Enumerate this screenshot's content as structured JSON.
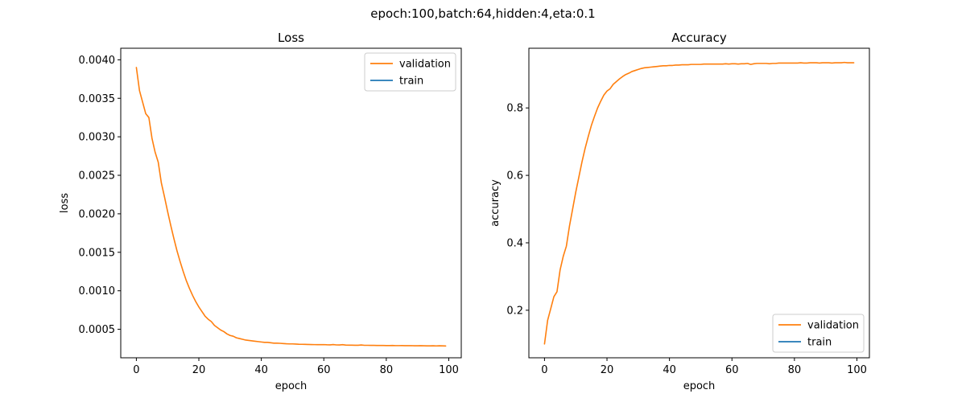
{
  "suptitle": "epoch:100,batch:64,hidden:4,eta:0.1",
  "chart_data": [
    {
      "type": "line",
      "title": "Loss",
      "xlabel": "epoch",
      "ylabel": "loss",
      "xlim": [
        -5,
        104
      ],
      "ylim": [
        0.00013,
        0.00415
      ],
      "xticks": [
        0,
        20,
        40,
        60,
        80,
        100
      ],
      "xtick_labels": [
        "0",
        "20",
        "40",
        "60",
        "80",
        "100"
      ],
      "yticks": [
        0.0005,
        0.001,
        0.0015,
        0.002,
        0.0025,
        0.003,
        0.0035,
        0.004
      ],
      "ytick_labels": [
        "0.0005",
        "0.0010",
        "0.0015",
        "0.0020",
        "0.0025",
        "0.0030",
        "0.0035",
        "0.0040"
      ],
      "legend_position": "top-right",
      "legend": [
        {
          "name": "validation",
          "color": "#ff7f0e"
        },
        {
          "name": "train",
          "color": "#1f77b4"
        }
      ],
      "series": [
        {
          "name": "validation",
          "color": "#ff7f0e",
          "x_start": 0,
          "values": [
            0.0039,
            0.0036,
            0.00345,
            0.0033,
            0.00325,
            0.00298,
            0.0028,
            0.00267,
            0.0024,
            0.00222,
            0.00203,
            0.00185,
            0.00168,
            0.00152,
            0.00138,
            0.00125,
            0.00113,
            0.00103,
            0.00094,
            0.00086,
            0.00079,
            0.00073,
            0.00067,
            0.00063,
            0.0006,
            0.00055,
            0.00052,
            0.00049,
            0.00047,
            0.00044,
            0.00042,
            0.00041,
            0.00039,
            0.00038,
            0.00037,
            0.00036,
            0.000355,
            0.00035,
            0.000345,
            0.00034,
            0.000335,
            0.00033,
            0.00033,
            0.000325,
            0.00032,
            0.00032,
            0.000318,
            0.000315,
            0.000312,
            0.00031,
            0.00031,
            0.000308,
            0.000306,
            0.000305,
            0.000304,
            0.000303,
            0.000302,
            0.000301,
            0.0003,
            0.0003,
            0.000301,
            0.000299,
            0.000298,
            0.000302,
            0.000297,
            0.000296,
            0.0003,
            0.000295,
            0.000294,
            0.000294,
            0.000293,
            0.000293,
            0.000296,
            0.000292,
            0.000292,
            0.000291,
            0.000291,
            0.00029,
            0.00029,
            0.00029,
            0.000289,
            0.000289,
            0.00029,
            0.000288,
            0.000288,
            0.000289,
            0.000287,
            0.000287,
            0.000288,
            0.000286,
            0.000286,
            0.000287,
            0.000286,
            0.000285,
            0.000285,
            0.000286,
            0.000284,
            0.000286,
            0.000285,
            0.000283
          ]
        },
        {
          "name": "train",
          "color": "#1f77b4",
          "x_start": 0,
          "values": []
        }
      ]
    },
    {
      "type": "line",
      "title": "Accuracy",
      "xlabel": "epoch",
      "ylabel": "accuracy",
      "xlim": [
        -5,
        104
      ],
      "ylim": [
        0.059,
        0.977
      ],
      "xticks": [
        0,
        20,
        40,
        60,
        80,
        100
      ],
      "xtick_labels": [
        "0",
        "20",
        "40",
        "60",
        "80",
        "100"
      ],
      "yticks": [
        0.2,
        0.4,
        0.6,
        0.8
      ],
      "ytick_labels": [
        "0.2",
        "0.4",
        "0.6",
        "0.8"
      ],
      "legend_position": "bottom-right",
      "legend": [
        {
          "name": "validation",
          "color": "#ff7f0e"
        },
        {
          "name": "train",
          "color": "#1f77b4"
        }
      ],
      "series": [
        {
          "name": "validation",
          "color": "#ff7f0e",
          "x_start": 0,
          "values": [
            0.1,
            0.17,
            0.205,
            0.24,
            0.255,
            0.32,
            0.36,
            0.39,
            0.45,
            0.5,
            0.55,
            0.595,
            0.64,
            0.68,
            0.715,
            0.748,
            0.775,
            0.8,
            0.82,
            0.838,
            0.85,
            0.857,
            0.87,
            0.878,
            0.886,
            0.893,
            0.899,
            0.903,
            0.908,
            0.911,
            0.914,
            0.917,
            0.919,
            0.92,
            0.921,
            0.922,
            0.923,
            0.924,
            0.925,
            0.925,
            0.926,
            0.926,
            0.927,
            0.927,
            0.928,
            0.928,
            0.928,
            0.929,
            0.929,
            0.929,
            0.929,
            0.93,
            0.93,
            0.93,
            0.93,
            0.93,
            0.93,
            0.93,
            0.931,
            0.93,
            0.931,
            0.931,
            0.93,
            0.931,
            0.931,
            0.932,
            0.929,
            0.931,
            0.932,
            0.932,
            0.932,
            0.932,
            0.931,
            0.932,
            0.932,
            0.933,
            0.933,
            0.933,
            0.933,
            0.933,
            0.933,
            0.933,
            0.934,
            0.933,
            0.933,
            0.934,
            0.934,
            0.934,
            0.933,
            0.934,
            0.934,
            0.934,
            0.933,
            0.934,
            0.934,
            0.934,
            0.935,
            0.934,
            0.934,
            0.934
          ]
        },
        {
          "name": "train",
          "color": "#1f77b4",
          "x_start": 0,
          "values": []
        }
      ]
    }
  ]
}
